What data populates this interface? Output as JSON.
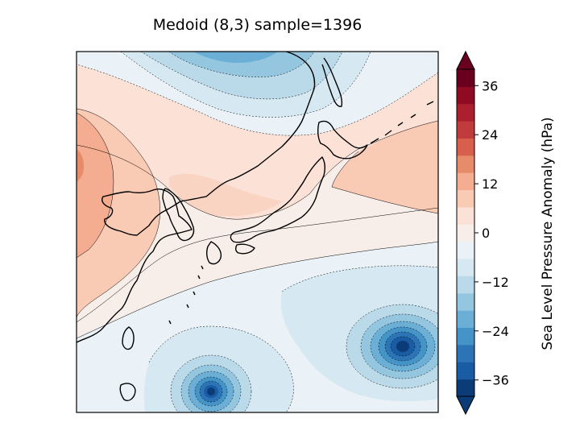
{
  "title": "Medoid (8,3) sample=1396",
  "colorbar": {
    "label": "Sea Level Pressure Anomaly (hPa)",
    "ticks": [
      "36",
      "24",
      "12",
      "0",
      "−12",
      "−24",
      "−36"
    ],
    "range": [
      -40,
      40
    ],
    "step": 4,
    "extend": "both",
    "colors": [
      "#0b3c77",
      "#1a5ca4",
      "#2c74b5",
      "#4594c7",
      "#6baed6",
      "#95c6df",
      "#bad9e9",
      "#d6e8f2",
      "#eaf2f7",
      "#f7eeea",
      "#fbe1d6",
      "#f9cbb4",
      "#f4ad90",
      "#e78c6b",
      "#d6604d",
      "#c03b3b",
      "#ac1f2e",
      "#8f0b24",
      "#6a0020"
    ]
  },
  "map": {
    "region": "East Asia / Japan",
    "features": [
      "coastlines",
      "filled contours",
      "contour lines",
      "negative dashed"
    ]
  }
}
